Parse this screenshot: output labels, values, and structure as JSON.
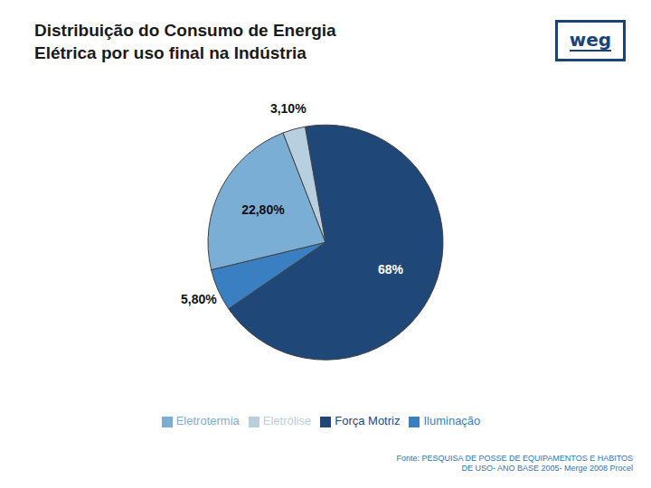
{
  "chart_data": {
    "type": "pie",
    "title": "Distribuição do Consumo de Energia\nElétrica por uso final na Indústria",
    "categories": [
      "Força Motriz",
      "Iluminação",
      "Eletrotermia",
      "Eletrólise"
    ],
    "values": [
      68.0,
      5.8,
      22.8,
      3.1
    ],
    "value_labels": [
      "68%",
      "5,80%",
      "22,80%",
      "3,10%"
    ],
    "colors": [
      "#1f4878",
      "#3a7fc1",
      "#7aaed4",
      "#b8cfe0"
    ],
    "data_labels": true,
    "legend": "bottom",
    "annotations": [
      "weg",
      "Fonte: PESQUISA DE POSSE DE EQUIPAMENTOS E HABITOS\nDE USO- ANO BASE 2005- Merge 2008 Procel"
    ]
  }
}
